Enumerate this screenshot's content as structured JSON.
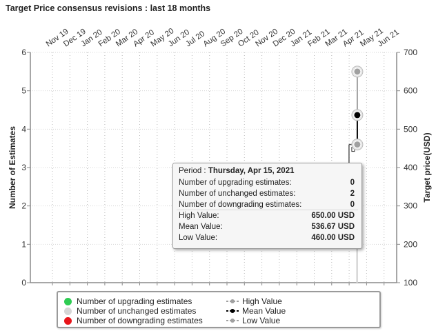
{
  "title": "Target Price consensus revisions : last 18 months",
  "chart_data": {
    "type": "bar",
    "title": "Target Price consensus revisions : last 18 months",
    "months": [
      "Nov 19",
      "Dec 19",
      "Jan 20",
      "Feb 20",
      "Mar 20",
      "Apr 20",
      "May 20",
      "Jun 20",
      "Jul 20",
      "Aug 20",
      "Sep 20",
      "Oct 20",
      "Nov 20",
      "Dec 20",
      "Jan 21",
      "Feb 21",
      "Mar 21",
      "Apr 21",
      "May 21",
      "Jun 21"
    ],
    "ylabel_left": "Number of Estimates",
    "ylabel_right": "Target price(USD)",
    "ylim_left": [
      0,
      6
    ],
    "yticks_left": [
      "0",
      "1",
      "2",
      "3",
      "4",
      "5",
      "6"
    ],
    "ylim_right": [
      100,
      700
    ],
    "yticks_right": [
      "100",
      "200",
      "300",
      "400",
      "500",
      "600",
      "700"
    ],
    "series": [
      {
        "name": "Number of upgrading estimates",
        "color": "#2ecc52",
        "points": [
          {
            "x": "2021-04-15",
            "y": 0
          }
        ]
      },
      {
        "name": "Number of unchanged estimates",
        "color": "#d6d6d6",
        "points": [
          {
            "x": "2021-04-15",
            "y": 2
          }
        ]
      },
      {
        "name": "Number of downgrading estimates",
        "color": "#e8141a",
        "points": [
          {
            "x": "2021-04-15",
            "y": 0
          }
        ]
      },
      {
        "name": "High Value",
        "color": "#a0a0a0",
        "points": [
          {
            "x": "2021-04-15",
            "y": 650
          }
        ]
      },
      {
        "name": "Mean Value",
        "color": "#000000",
        "points": [
          {
            "x": "2021-04-15",
            "y": 536.67
          }
        ]
      },
      {
        "name": "Low Value",
        "color": "#a0a0a0",
        "points": [
          {
            "x": "2021-04-15",
            "y": 460
          }
        ]
      }
    ],
    "grid": true,
    "legend_position": "bottom"
  },
  "tooltip": {
    "period_label": "Period :",
    "period_value": "Thursday, Apr 15, 2021",
    "rows": [
      {
        "label": "Number of upgrading estimates:",
        "value": "0"
      },
      {
        "label": "Number of unchanged estimates:",
        "value": "2"
      },
      {
        "label": "Number of downgrading estimates:",
        "value": "0"
      },
      {
        "label": "High Value:",
        "value": "650.00 USD"
      },
      {
        "label": "Mean Value:",
        "value": "536.67 USD"
      },
      {
        "label": "Low Value:",
        "value": "460.00 USD"
      }
    ]
  },
  "legend": {
    "upgrading": "Number of upgrading estimates",
    "unchanged": "Number of unchanged estimates",
    "downgrading": "Number of downgrading estimates",
    "high": "High Value",
    "mean": "Mean Value",
    "low": "Low Value"
  }
}
